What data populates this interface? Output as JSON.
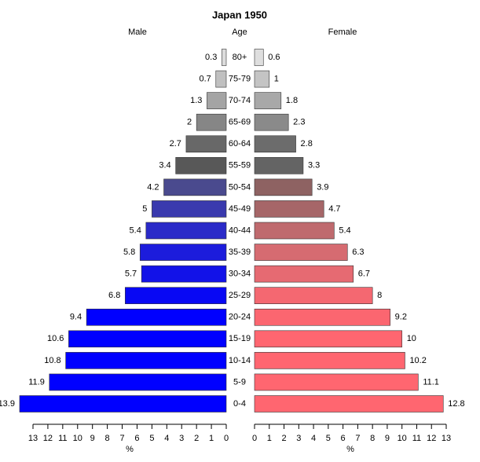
{
  "chart_data": {
    "type": "pyramid",
    "title": "Japan 1950",
    "category_label": "Age",
    "categories": [
      "0-4",
      "5-9",
      "10-14",
      "15-19",
      "20-24",
      "25-29",
      "30-34",
      "35-39",
      "40-44",
      "45-49",
      "50-54",
      "55-59",
      "60-64",
      "65-69",
      "70-74",
      "75-79",
      "80+"
    ],
    "series": [
      {
        "name": "Male",
        "xlabel": "%",
        "xlim": [
          0,
          13
        ],
        "xticks": [
          0,
          1,
          2,
          3,
          4,
          5,
          6,
          7,
          8,
          9,
          10,
          11,
          12,
          13
        ],
        "values": [
          13.9,
          11.9,
          10.8,
          10.6,
          9.4,
          6.8,
          5.7,
          5.8,
          5.4,
          5,
          4.2,
          3.4,
          2.7,
          2,
          1.3,
          0.7,
          0.3
        ],
        "colors": [
          "#0000ff",
          "#0000ff",
          "#0000ff",
          "#0000ff",
          "#0000ff",
          "#0808f4",
          "#1212e8",
          "#1c1cdc",
          "#2a2ac8",
          "#3a3aae",
          "#4a4a8e",
          "#585858",
          "#686868",
          "#868686",
          "#a4a4a4",
          "#c0c0c0",
          "#dcdcdc"
        ]
      },
      {
        "name": "Female",
        "xlabel": "%",
        "xlim": [
          0,
          13
        ],
        "xticks": [
          0,
          1,
          2,
          3,
          4,
          5,
          6,
          7,
          8,
          9,
          10,
          11,
          12,
          13
        ],
        "values": [
          12.8,
          11.1,
          10.2,
          10,
          9.2,
          8,
          6.7,
          6.3,
          5.4,
          4.7,
          3.9,
          3.3,
          2.8,
          2.3,
          1.8,
          1,
          0.6
        ],
        "colors": [
          "#ff6670",
          "#ff6670",
          "#ff6670",
          "#ff6670",
          "#fb6670",
          "#f46871",
          "#e66a72",
          "#d66b71",
          "#bf6a6e",
          "#a66668",
          "#8e6262",
          "#646464",
          "#6c6c6c",
          "#8a8a8a",
          "#a8a8a8",
          "#c4c4c4",
          "#dedede"
        ]
      }
    ]
  }
}
